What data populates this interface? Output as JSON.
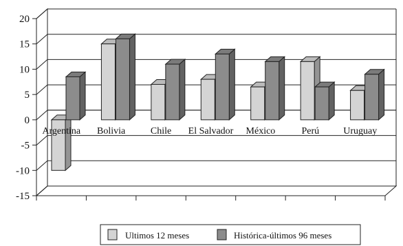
{
  "chart_data": {
    "type": "bar",
    "style": "3d-clustered",
    "categories": [
      "Argentina",
      "Bolivia",
      "Chile",
      "El Salvador",
      "México",
      "Perú",
      "Uruguay"
    ],
    "series": [
      {
        "name": "Ultimos 12 meses",
        "values": [
          -10,
          15,
          7,
          8,
          6.5,
          11.5,
          5.8
        ],
        "color": "#d4d4d4"
      },
      {
        "name": "Histórica-últimos 96 meses",
        "values": [
          8.5,
          16,
          11,
          13,
          11.5,
          6.5,
          9
        ],
        "color": "#8c8c8c"
      }
    ],
    "yticks": [
      20,
      15,
      10,
      5,
      0,
      -5,
      -10,
      -15
    ],
    "ylim": [
      -15,
      20
    ],
    "grid": true,
    "legend": "bottom"
  }
}
